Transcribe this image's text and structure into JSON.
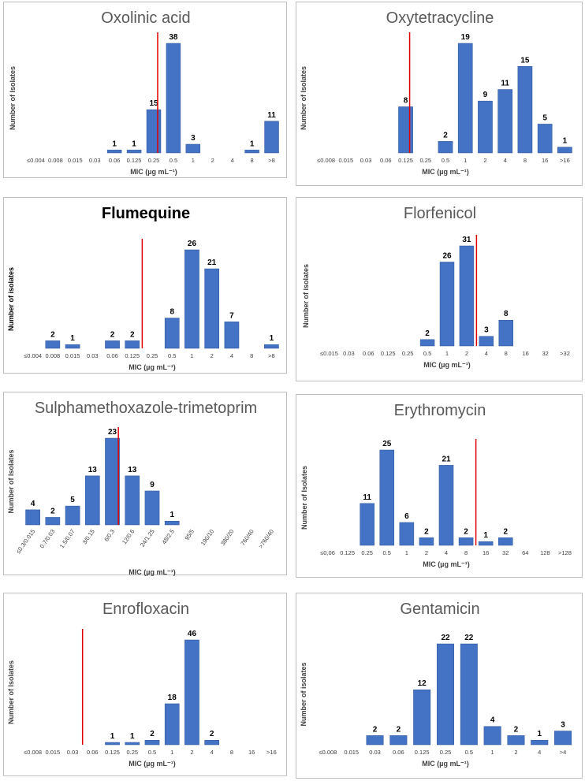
{
  "chart_data": [
    {
      "type": "bar",
      "title": "Oxolinic acid",
      "xlabel": "MIC (µg mL⁻¹)",
      "ylabel": "Number of Isolates",
      "categories": [
        "≤0.004",
        "0.008",
        "0.015",
        "0.03",
        "0.06",
        "0.125",
        "0.25",
        "0.5",
        "1",
        "2",
        "4",
        "8",
        ">8"
      ],
      "values": [
        0,
        0,
        0,
        0,
        1,
        1,
        15,
        38,
        3,
        0,
        0,
        1,
        11
      ],
      "labels": [
        "",
        "",
        "",
        "",
        "1",
        "1",
        "15",
        "38",
        "3",
        "",
        "",
        "1",
        "11"
      ],
      "ylim": [
        0,
        38
      ],
      "cutoff_after_index": 6,
      "cutoff_fraction": 0.7
    },
    {
      "type": "bar",
      "title": "Oxytetracycline",
      "xlabel": "MIC (µg mL⁻¹)",
      "ylabel": "Number of Isolates",
      "categories": [
        "≤0.008",
        "0.015",
        "0.03",
        "0.06",
        "0.125",
        "0.25",
        "0.5",
        "1",
        "2",
        "4",
        "8",
        "16",
        ">16"
      ],
      "values": [
        0,
        0,
        0,
        0,
        8,
        0,
        2,
        19,
        9,
        11,
        15,
        5,
        1
      ],
      "labels": [
        "",
        "",
        "",
        "",
        "8",
        "",
        "2",
        "19",
        "9",
        "11",
        "15",
        "5",
        "1"
      ],
      "ylim": [
        0,
        19
      ],
      "cutoff_after_index": 4,
      "cutoff_fraction": 0.7
    },
    {
      "type": "bar",
      "title": "Flumequine",
      "xlabel": "MIC (µg mL⁻¹)",
      "ylabel": "Number of isolates",
      "categories": [
        "≤0.004",
        "0.008",
        "0.015",
        "0.03",
        "0.06",
        "0.125",
        "0.25",
        "0.5",
        "1",
        "2",
        "4",
        "8",
        ">8"
      ],
      "values": [
        0,
        2,
        1,
        0,
        2,
        2,
        0,
        8,
        26,
        21,
        7,
        0,
        1
      ],
      "labels": [
        "",
        "2",
        "1",
        "",
        "2",
        "2",
        "",
        "8",
        "26",
        "21",
        "7",
        "",
        "1"
      ],
      "ylim": [
        0,
        26
      ],
      "cutoff_after_index": 5,
      "cutoff_fraction": 1.0
    },
    {
      "type": "bar",
      "title": "Florfenicol",
      "xlabel": "MIC (µg mL⁻¹)",
      "ylabel": "Number of isolates",
      "categories": [
        "≤0.015",
        "0.03",
        "0.06",
        "0.125",
        "0.25",
        "0.5",
        "1",
        "2",
        "4",
        "8",
        "16",
        "32",
        ">32"
      ],
      "values": [
        0,
        0,
        0,
        0,
        0,
        2,
        26,
        31,
        3,
        8,
        0,
        0,
        0
      ],
      "labels": [
        "",
        "",
        "",
        "",
        "",
        "2",
        "26",
        "31",
        "3",
        "8",
        "",
        "",
        ""
      ],
      "ylim": [
        0,
        31
      ],
      "cutoff_after_index": 7,
      "cutoff_fraction": 1.0
    },
    {
      "type": "bar",
      "title": "Sulphamethoxazole-trimetoprim",
      "xlabel": "MIC (µg mL⁻¹)",
      "ylabel": "Number of Isolates",
      "categories": [
        "≤0.3/0.015",
        "0.7/0.03",
        "1.5/0.07",
        "3/0.15",
        "6/0.3",
        "12/0.6",
        "24/1.25",
        "48/2.5",
        "95/5",
        "190/10",
        "380/20",
        "760/40",
        ">760/40"
      ],
      "values": [
        4,
        2,
        5,
        13,
        23,
        13,
        9,
        1,
        0,
        0,
        0,
        0,
        0
      ],
      "labels": [
        "4",
        "2",
        "5",
        "13",
        "23",
        "13",
        "9",
        "1",
        "",
        "",
        "",
        "",
        ""
      ],
      "ylim": [
        0,
        23
      ],
      "cutoff_after_index": 4,
      "cutoff_fraction": 0.8
    },
    {
      "type": "bar",
      "title": "Erythromycin",
      "xlabel": "MIC (µg mL⁻¹)",
      "ylabel": "Number of Isolates",
      "categories": [
        "≤0,06",
        "0.125",
        "0.25",
        "0.5",
        "1",
        "2",
        "4",
        "8",
        "16",
        "32",
        "64",
        "128",
        ">128"
      ],
      "values": [
        0,
        0,
        11,
        25,
        6,
        2,
        21,
        2,
        1,
        2,
        0,
        0,
        0
      ],
      "labels": [
        "",
        "",
        "11",
        "25",
        "6",
        "2",
        "21",
        "2",
        "1",
        "2",
        "",
        "",
        ""
      ],
      "ylim": [
        0,
        25
      ],
      "cutoff_after_index": 7,
      "cutoff_fraction": 1.0
    },
    {
      "type": "bar",
      "title": "Enrofloxacin",
      "xlabel": "MIC (µg mL⁻¹)",
      "ylabel": "Number of Isolates",
      "categories": [
        "≤0.008",
        "0.015",
        "0.03",
        "0.06",
        "0.125",
        "0.25",
        "0.5",
        "1",
        "2",
        "4",
        "8",
        "16",
        ">16"
      ],
      "values": [
        0,
        0,
        0,
        0,
        1,
        1,
        2,
        18,
        46,
        2,
        0,
        0,
        0
      ],
      "labels": [
        "",
        "",
        "",
        "",
        "1",
        "1",
        "2",
        "18",
        "46",
        "2",
        "",
        "",
        ""
      ],
      "ylim": [
        0,
        46
      ],
      "cutoff_after_index": 2,
      "cutoff_fraction": 1.0
    },
    {
      "type": "bar",
      "title": "Gentamicin",
      "xlabel": "MIC (µg mL⁻¹)",
      "ylabel": "Number of isolates",
      "categories": [
        "≤0.008",
        "0.015",
        "0.03",
        "0.06",
        "0.125",
        "0.25",
        "0.5",
        "1",
        "2",
        "4",
        ">4"
      ],
      "values": [
        0,
        0,
        2,
        2,
        12,
        22,
        22,
        4,
        2,
        1,
        3
      ],
      "labels": [
        "",
        "",
        "2",
        "2",
        "12",
        "22",
        "22",
        "4",
        "2",
        "1",
        "3"
      ],
      "ylim": [
        0,
        22
      ]
    }
  ],
  "colors": {
    "bar": "#4472c4",
    "bar_dark": "#2f5597",
    "cutoff": "#e00000",
    "text": "#404040",
    "title": "#595959"
  }
}
